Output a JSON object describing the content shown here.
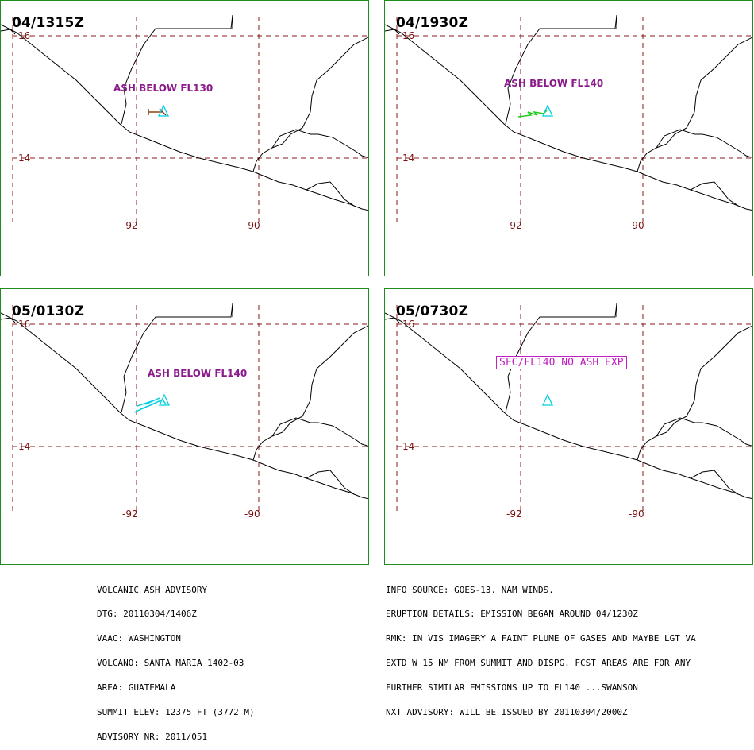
{
  "panels": [
    {
      "time": "04/1315Z",
      "lat_north": "16",
      "lat_south": "14",
      "lon_west": "-92",
      "lon_east": "-90",
      "label": "ASH BELOW FL130"
    },
    {
      "time": "04/1930Z",
      "lat_north": "16",
      "lat_south": "14",
      "lon_west": "-92",
      "lon_east": "-90",
      "label": "ASH BELOW FL140"
    },
    {
      "time": "05/0130Z",
      "lat_north": "16",
      "lat_south": "14",
      "lon_west": "-92",
      "lon_east": "-90",
      "label": "ASH BELOW FL140"
    },
    {
      "time": "05/0730Z",
      "lat_north": "16",
      "lat_south": "14",
      "lon_west": "-92",
      "lon_east": "-90",
      "label": "SFC/FL140 NO ASH EXP"
    }
  ],
  "advisory_left": [
    "VOLCANIC ASH ADVISORY",
    "DTG: 20110304/1406Z",
    "VAAC: WASHINGTON",
    "VOLCANO: SANTA MARIA 1402-03",
    "AREA: GUATEMALA",
    "SUMMIT ELEV: 12375 FT (3772 M)",
    "ADVISORY NR: 2011/051"
  ],
  "advisory_right": [
    "INFO SOURCE: GOES-13. NAM WINDS.",
    "ERUPTION DETAILS: EMISSION BEGAN AROUND 04/1230Z",
    "RMK: IN VIS IMAGERY A FAINT PLUME OF GASES AND MAYBE LGT VA",
    "EXTD W 15 NM FROM SUMMIT AND DISPG. FCST AREAS ARE FOR ANY",
    "FURTHER SIMILAR EMISSIONS UP TO FL140 ...SWANSON",
    "NXT ADVISORY: WILL BE ISSUED BY 20110304/2000Z"
  ],
  "colors": {
    "frame": "#1e8c1e",
    "grid": "#8b1a1a",
    "coast": "#000000",
    "volcano": "#00d0e0",
    "ash_label": "#8b1a8b",
    "obs_1315": "#8b4513",
    "obs_1930": "#22cc22",
    "fcst_0130": "#00d0e0",
    "no_ash_box": "#c020c0"
  }
}
